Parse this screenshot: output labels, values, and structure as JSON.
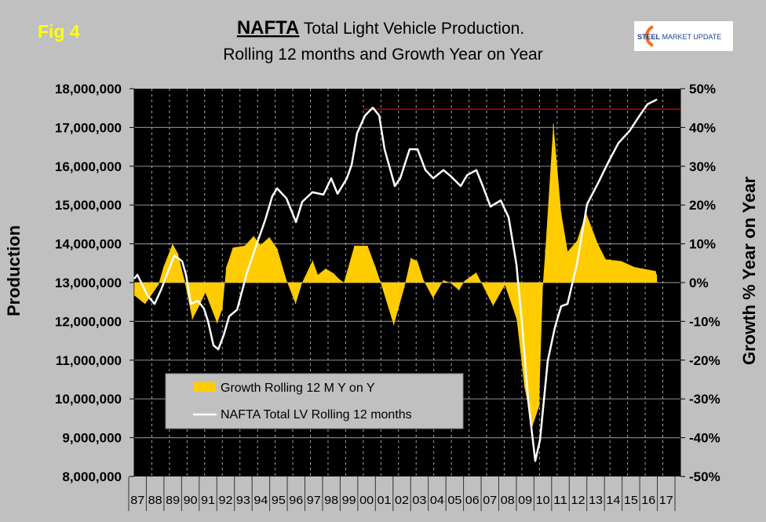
{
  "figure_label": "Fig 4",
  "title": {
    "bold": "NAFTA",
    "rest": " Total Light Vehicle Production.",
    "line2": "Rolling 12 months and Growth Year on Year"
  },
  "logo": {
    "text_bold": "STEEL",
    "text_rest": " MARKET UPDATE"
  },
  "chart_data": {
    "type": "line+area",
    "ylabel": "Production",
    "y2label": "Growth % Year on Year",
    "ylim": [
      8000000,
      18000000
    ],
    "y2lim": [
      -50,
      50
    ],
    "yticks": [
      "8,000,000",
      "9,000,000",
      "10,000,000",
      "11,000,000",
      "12,000,000",
      "13,000,000",
      "14,000,000",
      "15,000,000",
      "16,000,000",
      "17,000,000",
      "18,000,000"
    ],
    "y2ticks": [
      "-50%",
      "-40%",
      "-30%",
      "-20%",
      "-10%",
      "0%",
      "10%",
      "20%",
      "30%",
      "40%",
      "50%"
    ],
    "xticks": [
      "87",
      "88",
      "89",
      "90",
      "91",
      "92",
      "93",
      "94",
      "95",
      "96",
      "97",
      "98",
      "99",
      "00",
      "01",
      "02",
      "03",
      "04",
      "05",
      "06",
      "07",
      "08",
      "09",
      "10",
      "11",
      "12",
      "13",
      "14",
      "15",
      "16",
      "17"
    ],
    "xlim": [
      1987,
      2018
    ],
    "grid": true,
    "legend_position": "bottom-left",
    "reference_line": {
      "value": 17470000,
      "from_year": 2000.0,
      "color": "#c00000"
    },
    "series": [
      {
        "name": "Growth Rolling 12 M Y on Y",
        "axis": "right",
        "kind": "area",
        "color": "#ffcc00",
        "points": [
          [
            1987.03,
            -3.4
          ],
          [
            1987.62,
            -5.5
          ],
          [
            1988.37,
            -0.6
          ],
          [
            1988.66,
            4
          ],
          [
            1989.18,
            10
          ],
          [
            1989.48,
            7.5
          ],
          [
            1989.85,
            0.6
          ],
          [
            1990.3,
            -9.5
          ],
          [
            1990.74,
            -5.5
          ],
          [
            1991.04,
            -2.6
          ],
          [
            1991.71,
            -10.5
          ],
          [
            1992.0,
            -6.7
          ],
          [
            1992.23,
            4
          ],
          [
            1992.6,
            9
          ],
          [
            1993.27,
            9.5
          ],
          [
            1993.78,
            12
          ],
          [
            1994.16,
            9.7
          ],
          [
            1994.67,
            11.7
          ],
          [
            1995.12,
            8.7
          ],
          [
            1995.64,
            0.6
          ],
          [
            1996.16,
            -5.5
          ],
          [
            1996.53,
            0
          ],
          [
            1997.13,
            5.7
          ],
          [
            1997.42,
            2
          ],
          [
            1997.87,
            3.6
          ],
          [
            1998.31,
            2.4
          ],
          [
            1998.61,
            1
          ],
          [
            1998.9,
            0
          ],
          [
            1999.5,
            9.5
          ],
          [
            2000.24,
            9.5
          ],
          [
            2000.69,
            4
          ],
          [
            2000.99,
            0
          ],
          [
            2001.73,
            -11
          ],
          [
            2002.32,
            -1.4
          ],
          [
            2002.7,
            6.3
          ],
          [
            2003.07,
            5.5
          ],
          [
            2003.44,
            0.4
          ],
          [
            2003.96,
            -4
          ],
          [
            2004.55,
            0.6
          ],
          [
            2004.92,
            0
          ],
          [
            2005.44,
            -2
          ],
          [
            2005.74,
            0.4
          ],
          [
            2006.41,
            2.6
          ],
          [
            2006.7,
            0
          ],
          [
            2007.37,
            -6
          ],
          [
            2008.04,
            -0.6
          ],
          [
            2008.71,
            -9.5
          ],
          [
            2009.15,
            -27
          ],
          [
            2009.6,
            -37
          ],
          [
            2009.97,
            -32
          ],
          [
            2010.19,
            -0.6
          ],
          [
            2010.34,
            8.7
          ],
          [
            2010.79,
            41
          ],
          [
            2011.23,
            18
          ],
          [
            2011.6,
            8
          ],
          [
            2012.12,
            10.7
          ],
          [
            2012.64,
            18
          ],
          [
            2013.31,
            10
          ],
          [
            2013.76,
            6
          ],
          [
            2014.65,
            5.5
          ],
          [
            2015.39,
            4
          ],
          [
            2016.58,
            3
          ],
          [
            2016.65,
            2
          ]
        ]
      },
      {
        "name": "NAFTA Total LV Rolling 12 months",
        "axis": "left",
        "kind": "line",
        "color": "#ffffff",
        "points": [
          [
            1987.0,
            13100000
          ],
          [
            1987.18,
            13200000
          ],
          [
            1987.76,
            12660000
          ],
          [
            1988.16,
            12450000
          ],
          [
            1988.51,
            12800000
          ],
          [
            1989.27,
            13700000
          ],
          [
            1989.72,
            13550000
          ],
          [
            1989.94,
            13200000
          ],
          [
            1990.21,
            12450000
          ],
          [
            1990.61,
            12530000
          ],
          [
            1990.96,
            12330000
          ],
          [
            1991.19,
            12000000
          ],
          [
            1991.5,
            11380000
          ],
          [
            1991.77,
            11280000
          ],
          [
            1992.08,
            11650000
          ],
          [
            1992.39,
            12130000
          ],
          [
            1992.84,
            12300000
          ],
          [
            1993.41,
            13270000
          ],
          [
            1993.86,
            13870000
          ],
          [
            1994.44,
            14620000
          ],
          [
            1994.84,
            15230000
          ],
          [
            1995.11,
            15430000
          ],
          [
            1995.64,
            15170000
          ],
          [
            1996.18,
            14560000
          ],
          [
            1996.53,
            15080000
          ],
          [
            1997.11,
            15330000
          ],
          [
            1997.74,
            15270000
          ],
          [
            1998.18,
            15690000
          ],
          [
            1998.54,
            15290000
          ],
          [
            1999.07,
            15690000
          ],
          [
            1999.34,
            16040000
          ],
          [
            1999.65,
            16850000
          ],
          [
            2000.1,
            17310000
          ],
          [
            2000.54,
            17510000
          ],
          [
            2000.9,
            17310000
          ],
          [
            2001.21,
            16440000
          ],
          [
            2001.79,
            15490000
          ],
          [
            2002.1,
            15690000
          ],
          [
            2002.63,
            16440000
          ],
          [
            2003.08,
            16440000
          ],
          [
            2003.53,
            15900000
          ],
          [
            2003.97,
            15690000
          ],
          [
            2004.55,
            15900000
          ],
          [
            2005.0,
            15730000
          ],
          [
            2005.53,
            15490000
          ],
          [
            2005.89,
            15770000
          ],
          [
            2006.42,
            15900000
          ],
          [
            2006.78,
            15490000
          ],
          [
            2007.22,
            14960000
          ],
          [
            2007.8,
            15120000
          ],
          [
            2008.25,
            14680000
          ],
          [
            2008.69,
            13470000
          ],
          [
            2009.0,
            11990000
          ],
          [
            2009.36,
            9960000
          ],
          [
            2009.76,
            8400000
          ],
          [
            2010.03,
            8950000
          ],
          [
            2010.47,
            10980000
          ],
          [
            2010.88,
            11850000
          ],
          [
            2011.23,
            12390000
          ],
          [
            2011.59,
            12450000
          ],
          [
            2012.12,
            13470000
          ],
          [
            2012.7,
            15020000
          ],
          [
            2013.33,
            15570000
          ],
          [
            2013.9,
            16100000
          ],
          [
            2014.48,
            16600000
          ],
          [
            2015.11,
            16910000
          ],
          [
            2015.69,
            17310000
          ],
          [
            2016.13,
            17600000
          ],
          [
            2016.67,
            17720000
          ]
        ]
      }
    ]
  }
}
